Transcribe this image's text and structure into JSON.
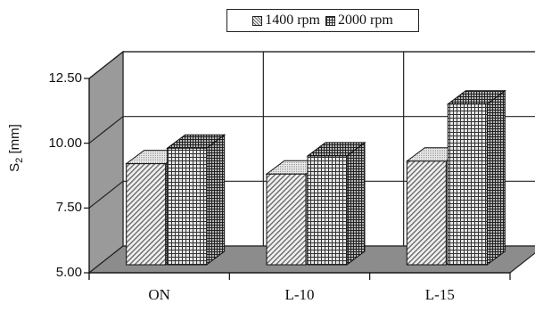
{
  "chart_data": {
    "type": "bar",
    "categories": [
      "ON",
      "L-10",
      "L-15"
    ],
    "series": [
      {
        "name": "1400 rpm",
        "values": [
          8.9,
          8.5,
          9.0
        ],
        "pattern": "diagonal-hatch",
        "color": "#dcdcdc"
      },
      {
        "name": "2000 rpm",
        "values": [
          9.5,
          9.2,
          11.2
        ],
        "pattern": "grid-hatch",
        "color": "#d8d8d8"
      }
    ],
    "ylabel": "S2 [mm]",
    "ylabel_main": "S",
    "ylabel_sub": "2",
    "ylabel_unit": " [mm]",
    "ylim": [
      5,
      12.5
    ],
    "yticks": [
      "5.00",
      "7.50",
      "10.00",
      "12.50"
    ],
    "grid": true,
    "legend_position": "top-center",
    "style": "3d-perspective",
    "colors": {
      "wall": "#9a9a9a",
      "floor": "#8c8c8c",
      "grid": "#222222"
    }
  }
}
